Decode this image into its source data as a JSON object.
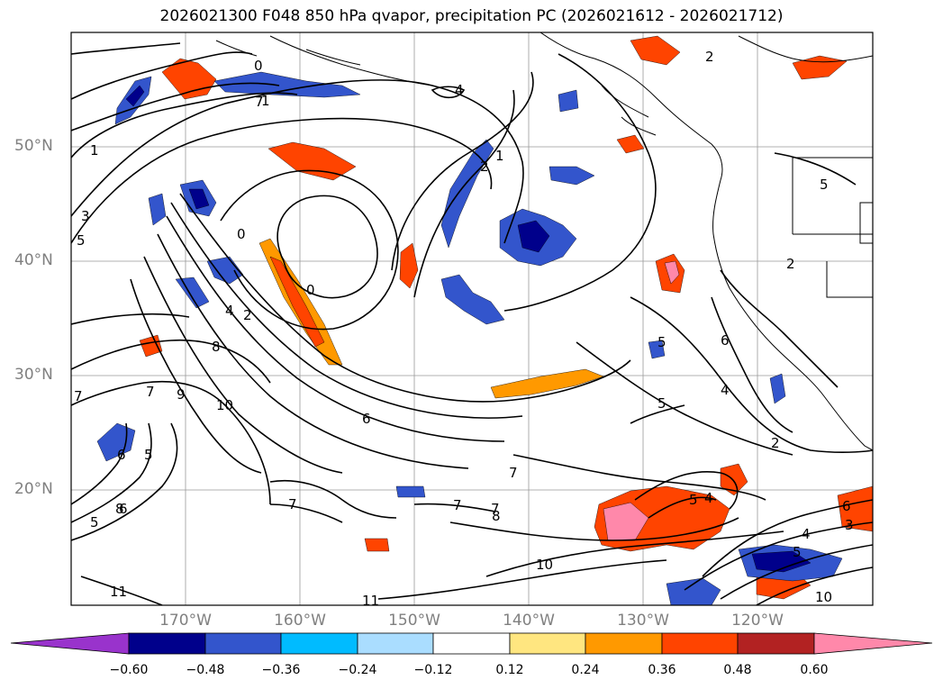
{
  "title": "2026021300 F048 850 hPa qvapor, precipitation PC (2026021612 - 2026021712)",
  "map": {
    "lat_labels": [
      "50°N",
      "40°N",
      "30°N",
      "20°N"
    ],
    "lon_labels": [
      "170°W",
      "160°W",
      "150°W",
      "140°W",
      "130°W",
      "120°W"
    ],
    "contour_labels": [
      "0",
      "1",
      "2",
      "3",
      "4",
      "5",
      "6",
      "7",
      "8",
      "9",
      "10",
      "11"
    ],
    "gridlines": true,
    "coastline_color": "#000000"
  },
  "colorbar": {
    "tick_labels": [
      "−0.60",
      "−0.48",
      "−0.36",
      "−0.24",
      "−0.12",
      "0.12",
      "0.24",
      "0.36",
      "0.48",
      "0.60"
    ],
    "colors": [
      "#9933cc",
      "#00008b",
      "#3355cc",
      "#00bbff",
      "#aaddff",
      "#ffffff",
      "#ffe680",
      "#ff9900",
      "#ff4400",
      "#b22222",
      "#ff88aa"
    ],
    "extend": "both"
  }
}
